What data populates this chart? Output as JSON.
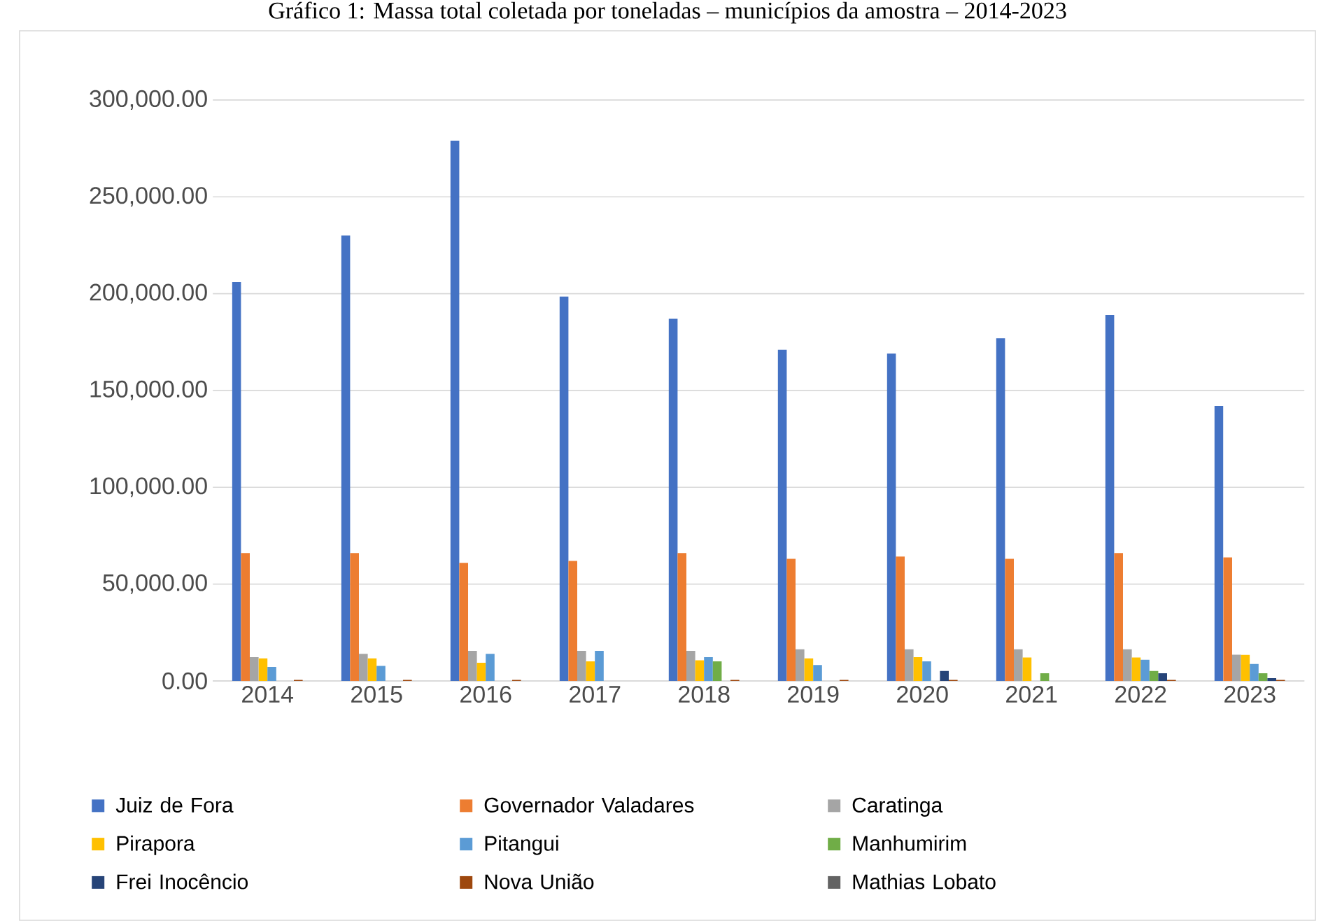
{
  "chart_data": {
    "type": "bar",
    "title": "Gráfico 1: Massa total coletada por toneladas – municípios da amostra – 2014-2023",
    "categories": [
      "2014",
      "2015",
      "2016",
      "2017",
      "2018",
      "2019",
      "2020",
      "2021",
      "2022",
      "2023"
    ],
    "series": [
      {
        "name": "Juiz de Fora",
        "color": "#4472c4",
        "values": [
          206000,
          230000,
          279000,
          198500,
          187000,
          171000,
          169000,
          177000,
          189000,
          142000
        ]
      },
      {
        "name": "Governador Valadares",
        "color": "#ed7d31",
        "values": [
          66000,
          66000,
          61000,
          62000,
          66000,
          63000,
          64200,
          63000,
          66000,
          63800
        ]
      },
      {
        "name": "Caratinga",
        "color": "#a5a5a5",
        "values": [
          12300,
          14000,
          15500,
          15500,
          15500,
          16400,
          16400,
          16400,
          16400,
          13500
        ]
      },
      {
        "name": "Pirapora",
        "color": "#ffc000",
        "values": [
          11600,
          11600,
          9400,
          10100,
          10600,
          11600,
          12300,
          12100,
          12100,
          13500
        ]
      },
      {
        "name": "Pitangui",
        "color": "#5b9bd5",
        "values": [
          7200,
          7700,
          14000,
          15500,
          12300,
          8200,
          10100,
          null,
          10900,
          8700
        ]
      },
      {
        "name": "Manhumirim",
        "color": "#70ad47",
        "values": [
          null,
          null,
          null,
          null,
          10100,
          null,
          null,
          3900,
          5100,
          3900
        ]
      },
      {
        "name": "Frei Inocêncio",
        "color": "#264478",
        "values": [
          null,
          null,
          null,
          null,
          null,
          null,
          5100,
          null,
          3900,
          1400
        ]
      },
      {
        "name": "Nova União",
        "color": "#9e480e",
        "values": [
          500,
          500,
          500,
          null,
          500,
          500,
          500,
          null,
          500,
          500
        ]
      },
      {
        "name": "Mathias Lobato",
        "color": "#636363",
        "values": [
          null,
          null,
          null,
          null,
          null,
          null,
          null,
          null,
          null,
          null
        ]
      }
    ],
    "ylim": [
      0,
      300000
    ],
    "yticks": [
      {
        "value": 0,
        "label": "0.00"
      },
      {
        "value": 50000,
        "label": "50,000.00"
      },
      {
        "value": 100000,
        "label": "100,000.00"
      },
      {
        "value": 150000,
        "label": "150,000.00"
      },
      {
        "value": 200000,
        "label": "200,000.00"
      },
      {
        "value": 250000,
        "label": "250,000.00"
      },
      {
        "value": 300000,
        "label": "300,000.00"
      }
    ],
    "grid": "y",
    "legend": "bottom"
  }
}
